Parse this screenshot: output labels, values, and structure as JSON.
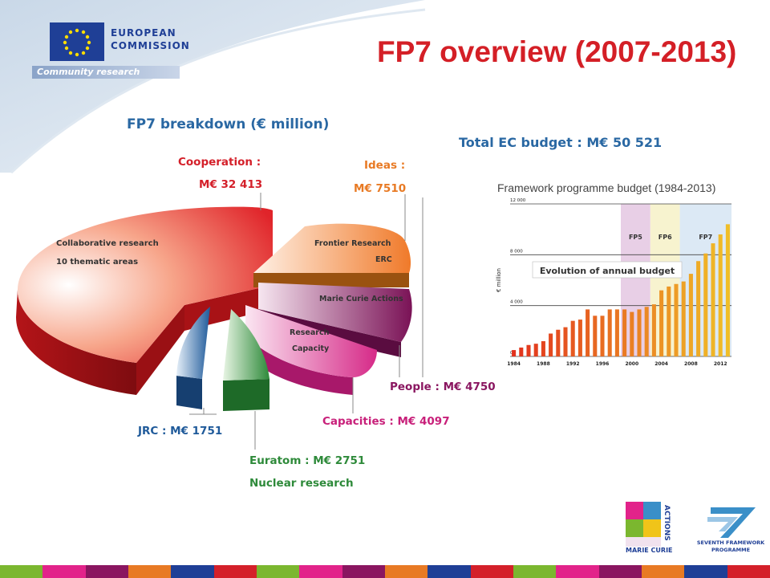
{
  "header": {
    "logo_word1": "EUROPEAN",
    "logo_word2": "COMMISSION",
    "logo_subtitle": "Community research"
  },
  "title": "FP7 overview (2007-2013)",
  "breakdown_heading": "FP7 breakdown (€ million)",
  "total_budget": "Total EC budget : M€ 50 521",
  "pie": {
    "cooperation": {
      "label": "Cooperation :",
      "value": "M€ 32 413",
      "inner_line1": "Collaborative research",
      "inner_line2": "10 thematic areas",
      "color": "#d4202a"
    },
    "ideas": {
      "label": "Ideas :",
      "value": "M€ 7510",
      "inner_line1": "Frontier Research",
      "inner_line2": "ERC",
      "color": "#e87a24"
    },
    "people": {
      "label": "People : M€ 4750",
      "inner": "Marie Curie Actions",
      "color": "#8a1660"
    },
    "capacities": {
      "label": "Capacities : M€ 4097",
      "inner_line1": "Research",
      "inner_line2": "Capacity",
      "color": "#c8207a"
    },
    "jrc": {
      "label": "JRC : M€ 1751",
      "color": "#1f5a9a"
    },
    "euratom": {
      "label": "Euratom : M€ 2751",
      "sub": "Nuclear research",
      "color": "#2e8a3a"
    }
  },
  "side_chart": {
    "title": "Framework programme budget (1984-2013)",
    "annotation": "Evolution of annual budget",
    "ylabel": "€ million",
    "y_ticks": [
      "12 000",
      "8 000",
      "4 000",
      "0"
    ],
    "x_ticks": [
      "1984",
      "1988",
      "1992",
      "1996",
      "2000",
      "2004",
      "2008",
      "2012"
    ],
    "bands": [
      "FP5",
      "FP6",
      "FP7"
    ],
    "chart_data": {
      "type": "bar",
      "x": [
        1984,
        1985,
        1986,
        1987,
        1988,
        1989,
        1990,
        1991,
        1992,
        1993,
        1994,
        1995,
        1996,
        1997,
        1998,
        1999,
        2000,
        2001,
        2002,
        2003,
        2004,
        2005,
        2006,
        2007,
        2008,
        2009,
        2010,
        2011,
        2012,
        2013
      ],
      "values": [
        500,
        700,
        900,
        1000,
        1200,
        1800,
        2100,
        2300,
        2800,
        2900,
        3700,
        3200,
        3200,
        3700,
        3700,
        3700,
        3500,
        3700,
        3900,
        4100,
        5200,
        5500,
        5700,
        5900,
        6500,
        7500,
        8100,
        8900,
        9600,
        10400
      ],
      "ylim": [
        0,
        12000
      ]
    }
  },
  "logos": {
    "mc_text1": "MARIE CURIE",
    "mc_text2": "ACTIONS",
    "fp7_text1": "SEVENTH FRAMEWORK",
    "fp7_text2": "PROGRAMME"
  },
  "colors": {
    "title": "#d41f26",
    "heading": "#2a68a3",
    "ec_blue": "#1f3f96"
  }
}
